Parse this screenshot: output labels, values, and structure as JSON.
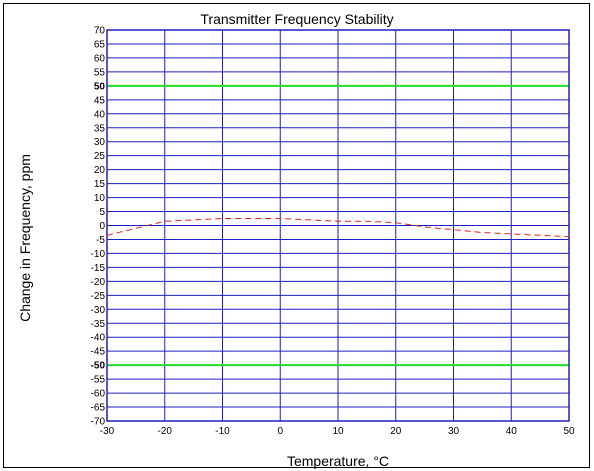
{
  "chart_data": {
    "type": "line",
    "title": "Transmitter Frequency Stability",
    "xlabel": "Temperature, °C",
    "ylabel": "Change in Frequency, ppm",
    "xlim": [
      -30,
      50
    ],
    "ylim": [
      -70,
      70
    ],
    "x_ticks": [
      -30,
      -20,
      -10,
      0,
      10,
      20,
      30,
      40,
      50
    ],
    "y_ticks": [
      70,
      65,
      60,
      55,
      50,
      45,
      40,
      35,
      30,
      25,
      20,
      15,
      10,
      5,
      0,
      -5,
      -10,
      -15,
      -20,
      -25,
      -30,
      -35,
      -40,
      -45,
      -50,
      -55,
      -60,
      -65,
      -70
    ],
    "bold_y_ticks": [
      50,
      -50
    ],
    "grid": true,
    "colors": {
      "grid": "#1f1fbf",
      "limit": "#22dd22",
      "series": "#dd2222"
    },
    "limits": [
      {
        "y": 50
      },
      {
        "y": -50
      }
    ],
    "series": [
      {
        "x": [
          -30,
          -25,
          -20,
          -15,
          -10,
          -5,
          0,
          5,
          10,
          15,
          20,
          25,
          30,
          35,
          40,
          45,
          50
        ],
        "values": [
          -3.5,
          -1,
          1.5,
          2,
          2.5,
          2.5,
          2.5,
          2,
          1.5,
          1.5,
          1,
          -0.5,
          -1.5,
          -2.5,
          -3,
          -3.5,
          -4
        ],
        "style": "dashed"
      }
    ]
  }
}
